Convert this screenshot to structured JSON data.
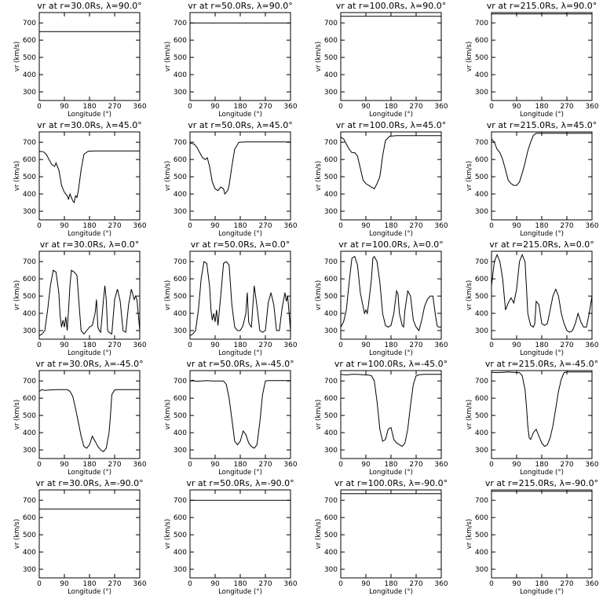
{
  "panel_titles": [
    "vr at r=30.0Rs, λ=90.0°",
    "vr at r=50.0Rs, λ=90.0°",
    "vr at r=100.0Rs, λ=90.0°",
    "vr at r=215.0Rs, λ=90.0°",
    "vr at r=30.0Rs, λ=45.0°",
    "vr at r=50.0Rs, λ=45.0°",
    "vr at r=100.0Rs, λ=45.0°",
    "vr at r=215.0Rs, λ=45.0°",
    "vr at r=30.0Rs, λ=0.0°",
    "vr at r=50.0Rs, λ=0.0°",
    "vr at r=100.0Rs, λ=0.0°",
    "vr at r=215.0Rs, λ=0.0°",
    "vr at r=30.0Rs, λ=-45.0°",
    "vr at r=50.0Rs, λ=-45.0°",
    "vr at r=100.0Rs, λ=-45.0°",
    "vr at r=215.0Rs, λ=-45.0°",
    "vr at r=30.0Rs, λ=-90.0°",
    "vr at r=50.0Rs, λ=-90.0°",
    "vr at r=100.0Rs, λ=-90.0°",
    "vr at r=215.0Rs, λ=-90.0°"
  ],
  "chart_data": {
    "type": "line",
    "xlabel": "Longitude (°)",
    "ylabel": "vr (km/s)",
    "xlim": [
      0,
      360
    ],
    "ylim": [
      250,
      760
    ],
    "xticks": [
      0,
      90,
      180,
      270,
      360
    ],
    "yticks": [
      300,
      400,
      500,
      600,
      700
    ],
    "grid": false,
    "rows": [
      {
        "latitude": 90.0,
        "panels": [
          {
            "r": 30.0,
            "x": [
              0,
              360
            ],
            "y": [
              650,
              650
            ]
          },
          {
            "r": 50.0,
            "x": [
              0,
              360
            ],
            "y": [
              700,
              700
            ]
          },
          {
            "r": 100.0,
            "x": [
              0,
              360
            ],
            "y": [
              738,
              738
            ]
          },
          {
            "r": 215.0,
            "x": [
              0,
              360
            ],
            "y": [
              752,
              752
            ]
          }
        ]
      },
      {
        "latitude": 45.0,
        "panels": [
          {
            "r": 30.0,
            "x": [
              0,
              15,
              25,
              35,
              45,
              55,
              60,
              70,
              80,
              90,
              95,
              100,
              105,
              110,
              115,
              120,
              125,
              130,
              135,
              140,
              150,
              160,
              175,
              200,
              250,
              360
            ],
            "y": [
              648,
              645,
              630,
              600,
              570,
              560,
              580,
              540,
              450,
              410,
              400,
              390,
              370,
              400,
              380,
              360,
              350,
              390,
              380,
              420,
              540,
              630,
              648,
              650,
              650,
              650
            ]
          },
          {
            "r": 50.0,
            "x": [
              0,
              15,
              25,
              35,
              45,
              55,
              62,
              70,
              80,
              90,
              100,
              110,
              120,
              125,
              130,
              135,
              140,
              150,
              160,
              175,
              200,
              360
            ],
            "y": [
              695,
              690,
              670,
              640,
              610,
              600,
              610,
              560,
              470,
              430,
              420,
              440,
              430,
              400,
              410,
              420,
              450,
              560,
              660,
              700,
              702,
              702
            ]
          },
          {
            "r": 100.0,
            "x": [
              0,
              10,
              20,
              30,
              40,
              50,
              60,
              70,
              80,
              90,
              100,
              110,
              120,
              130,
              140,
              150,
              160,
              175,
              200,
              360
            ],
            "y": [
              730,
              720,
              690,
              660,
              640,
              640,
              620,
              550,
              480,
              460,
              450,
              440,
              430,
              460,
              500,
              620,
              710,
              735,
              738,
              738
            ]
          },
          {
            "r": 215.0,
            "x": [
              0,
              10,
              20,
              30,
              40,
              50,
              60,
              70,
              80,
              90,
              100,
              110,
              120,
              130,
              140,
              150,
              160,
              180,
              360
            ],
            "y": [
              720,
              700,
              660,
              640,
              600,
              540,
              480,
              460,
              450,
              450,
              470,
              520,
              580,
              650,
              700,
              740,
              752,
              752,
              752
            ]
          }
        ]
      },
      {
        "latitude": 0.0,
        "panels": [
          {
            "r": 30.0,
            "x": [
              0,
              10,
              20,
              30,
              40,
              50,
              60,
              70,
              75,
              80,
              85,
              90,
              95,
              100,
              105,
              110,
              115,
              125,
              135,
              145,
              150,
              155,
              160,
              170,
              180,
              190,
              200,
              205,
              210,
              215,
              220,
              230,
              235,
              240,
              245,
              250,
              260,
              270,
              280,
              290,
              300,
              310,
              320,
              330,
              340,
              345,
              350,
              360
            ],
            "y": [
              270,
              280,
              300,
              420,
              560,
              650,
              640,
              520,
              380,
              320,
              360,
              320,
              380,
              300,
              420,
              560,
              650,
              640,
              620,
              400,
              300,
              290,
              280,
              300,
              320,
              330,
              400,
              480,
              320,
              300,
              290,
              480,
              560,
              480,
              300,
              290,
              280,
              480,
              540,
              470,
              300,
              290,
              450,
              540,
              480,
              500,
              480,
              300
            ]
          },
          {
            "r": 50.0,
            "x": [
              0,
              10,
              20,
              30,
              40,
              50,
              60,
              70,
              75,
              80,
              85,
              90,
              95,
              100,
              110,
              120,
              130,
              140,
              150,
              160,
              170,
              180,
              190,
              200,
              205,
              210,
              215,
              220,
              230,
              240,
              250,
              260,
              270,
              280,
              290,
              300,
              310,
              320,
              330,
              340,
              345,
              350,
              360
            ],
            "y": [
              270,
              280,
              300,
              420,
              600,
              700,
              690,
              560,
              420,
              360,
              400,
              350,
              420,
              330,
              500,
              690,
              700,
              680,
              450,
              320,
              300,
              300,
              330,
              400,
              520,
              350,
              330,
              320,
              560,
              440,
              300,
              290,
              300,
              460,
              520,
              450,
              300,
              300,
              430,
              520,
              470,
              500,
              300
            ]
          },
          {
            "r": 100.0,
            "x": [
              0,
              10,
              20,
              30,
              40,
              50,
              60,
              70,
              80,
              85,
              90,
              95,
              100,
              110,
              115,
              120,
              130,
              140,
              150,
              160,
              170,
              180,
              190,
              200,
              205,
              210,
              220,
              225,
              230,
              240,
              250,
              260,
              270,
              280,
              290,
              300,
              310,
              320,
              330,
              340,
              345,
              350,
              360
            ],
            "y": [
              320,
              350,
              420,
              580,
              720,
              730,
              680,
              520,
              440,
              400,
              420,
              400,
              460,
              600,
              720,
              730,
              700,
              580,
              400,
              330,
              320,
              330,
              400,
              530,
              510,
              400,
              330,
              320,
              420,
              530,
              500,
              360,
              320,
              300,
              360,
              440,
              480,
              500,
              500,
              380,
              330,
              320,
              320
            ]
          },
          {
            "r": 215.0,
            "x": [
              0,
              10,
              20,
              30,
              40,
              50,
              60,
              70,
              80,
              90,
              100,
              110,
              120,
              125,
              130,
              140,
              150,
              155,
              160,
              170,
              180,
              190,
              200,
              210,
              220,
              230,
              240,
              250,
              260,
              270,
              280,
              290,
              300,
              310,
              320,
              330,
              340,
              350,
              360
            ],
            "y": [
              560,
              700,
              740,
              700,
              600,
              420,
              460,
              490,
              460,
              540,
              700,
              740,
              700,
              560,
              400,
              330,
              320,
              340,
              470,
              450,
              340,
              330,
              340,
              420,
              500,
              540,
              500,
              400,
              340,
              300,
              290,
              300,
              340,
              400,
              350,
              320,
              320,
              400,
              500
            ]
          }
        ]
      },
      {
        "latitude": -45.0,
        "panels": [
          {
            "r": 30.0,
            "x": [
              0,
              10,
              20,
              40,
              60,
              80,
              100,
              110,
              120,
              130,
              140,
              150,
              160,
              170,
              180,
              190,
              200,
              210,
              220,
              230,
              240,
              250,
              255,
              260,
              270,
              280,
              300,
              360
            ],
            "y": [
              640,
              650,
              645,
              648,
              650,
              650,
              650,
              640,
              610,
              540,
              460,
              380,
              320,
              310,
              330,
              380,
              350,
              320,
              300,
              290,
              310,
              400,
              500,
              620,
              648,
              650,
              650,
              650
            ]
          },
          {
            "r": 50.0,
            "x": [
              0,
              10,
              20,
              40,
              60,
              80,
              100,
              120,
              130,
              140,
              150,
              160,
              170,
              180,
              190,
              200,
              210,
              220,
              230,
              240,
              250,
              260,
              270,
              280,
              360
            ],
            "y": [
              700,
              705,
              698,
              700,
              702,
              700,
              700,
              700,
              680,
              600,
              480,
              350,
              330,
              350,
              410,
              390,
              340,
              320,
              310,
              330,
              460,
              620,
              700,
              702,
              702
            ]
          },
          {
            "r": 100.0,
            "x": [
              0,
              20,
              40,
              60,
              80,
              100,
              110,
              120,
              130,
              140,
              150,
              160,
              170,
              180,
              190,
              200,
              210,
              220,
              230,
              240,
              250,
              260,
              270,
              280,
              300,
              360
            ],
            "y": [
              738,
              735,
              738,
              738,
              736,
              734,
              730,
              700,
              580,
              420,
              350,
              360,
              420,
              430,
              360,
              340,
              330,
              320,
              340,
              420,
              560,
              680,
              730,
              736,
              738,
              738
            ]
          },
          {
            "r": 215.0,
            "x": [
              0,
              20,
              40,
              60,
              80,
              100,
              110,
              120,
              125,
              130,
              135,
              140,
              150,
              160,
              170,
              180,
              190,
              200,
              210,
              220,
              230,
              240,
              250,
              260,
              270,
              360
            ],
            "y": [
              750,
              748,
              750,
              752,
              750,
              748,
              730,
              650,
              560,
              440,
              370,
              360,
              400,
              420,
              380,
              340,
              320,
              330,
              370,
              440,
              540,
              640,
              710,
              748,
              752,
              752
            ]
          }
        ]
      },
      {
        "latitude": -90.0,
        "panels": [
          {
            "r": 30.0,
            "x": [
              0,
              360
            ],
            "y": [
              650,
              650
            ]
          },
          {
            "r": 50.0,
            "x": [
              0,
              360
            ],
            "y": [
              700,
              700
            ]
          },
          {
            "r": 100.0,
            "x": [
              0,
              360
            ],
            "y": [
              738,
              738
            ]
          },
          {
            "r": 215.0,
            "x": [
              0,
              360
            ],
            "y": [
              752,
              752
            ]
          }
        ]
      }
    ]
  }
}
